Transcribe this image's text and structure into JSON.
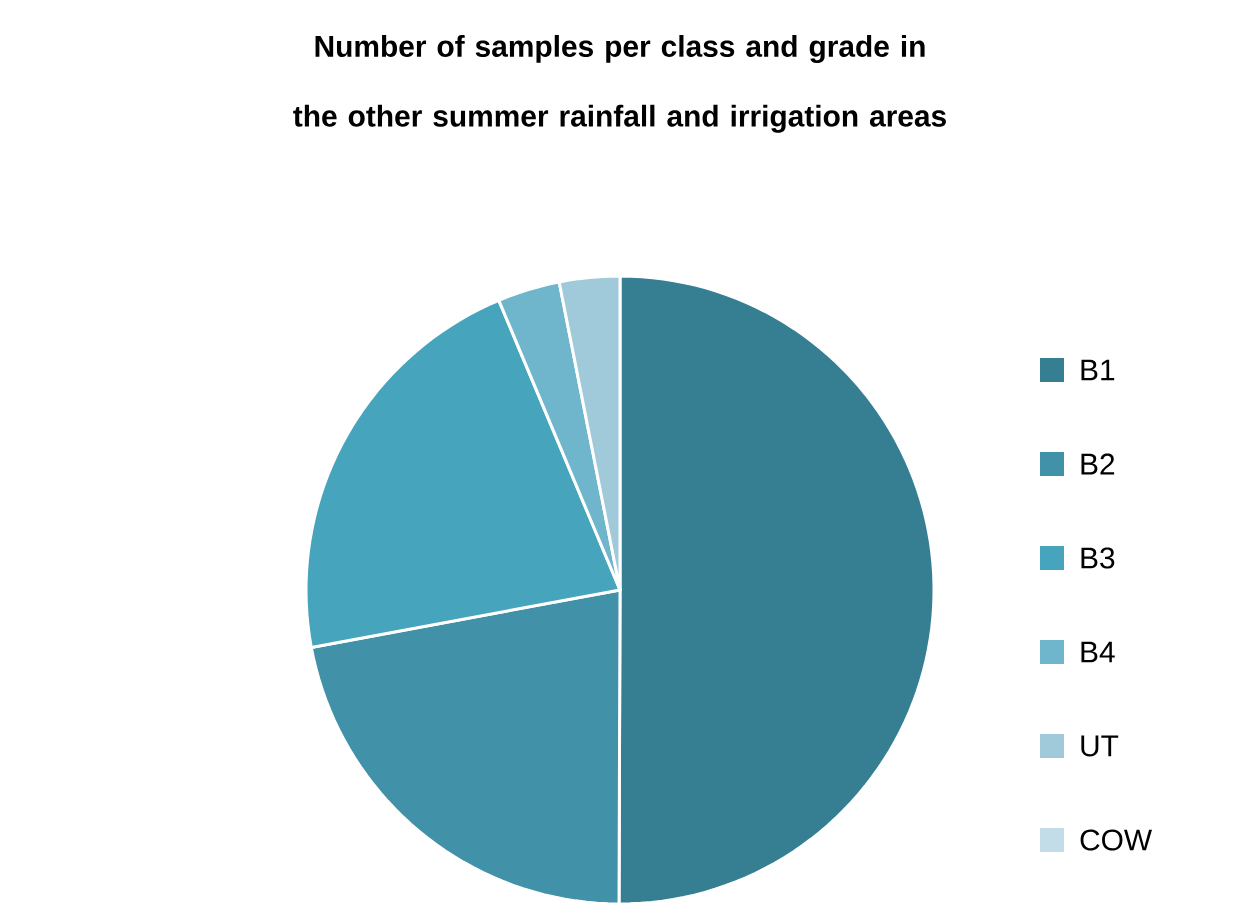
{
  "chart_data": {
    "type": "pie",
    "title": "Number of samples per class and grade in the other summer rainfall and irrigation areas",
    "categories": [
      "B1",
      "B2",
      "B3",
      "B4",
      "UT",
      "COW"
    ],
    "values": [
      50,
      22,
      21.6,
      3.2,
      3.1,
      0
    ],
    "colors": [
      "#367e91",
      "#4191a9",
      "#47a4bd",
      "#6fb5cb",
      "#a0c9da",
      "#c3dde8"
    ],
    "legend": "right"
  }
}
